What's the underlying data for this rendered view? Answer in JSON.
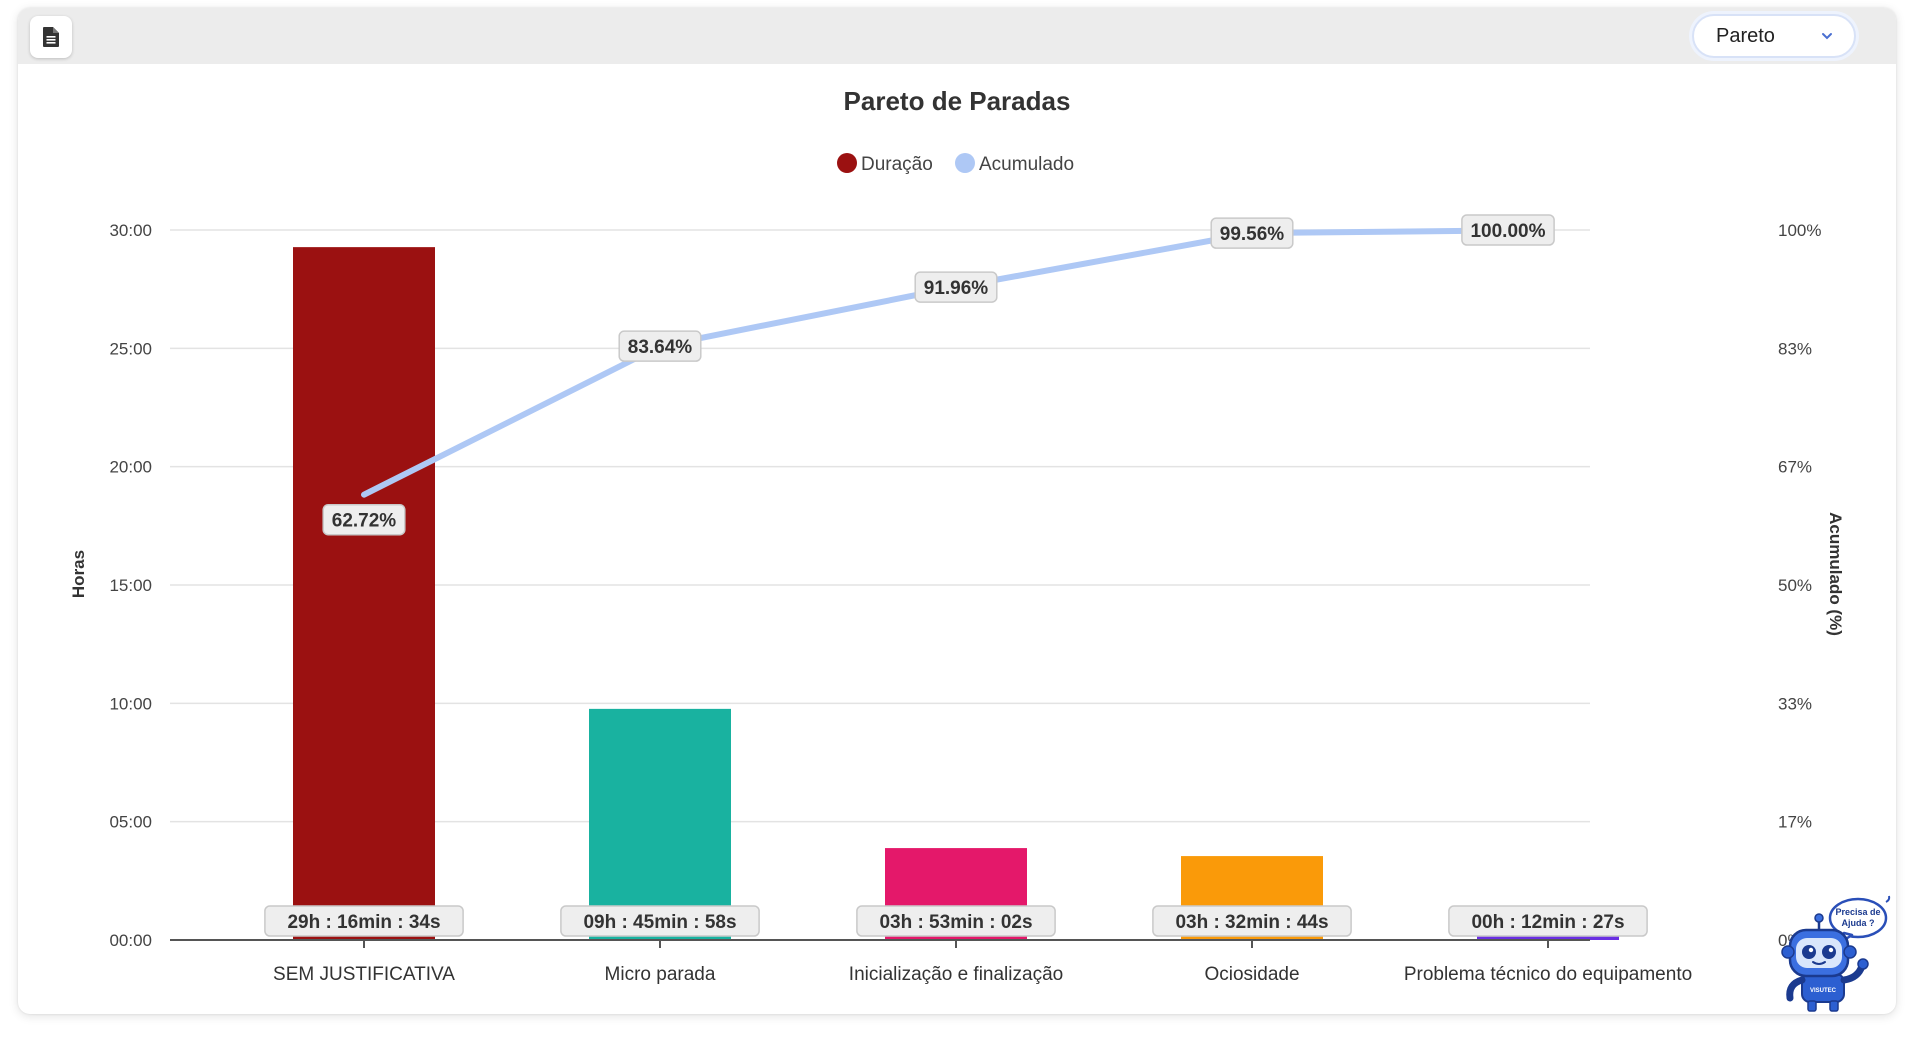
{
  "toolbar": {
    "doc_icon": "document-icon",
    "select_value": "Pareto",
    "select_icon": "chevron-down-icon"
  },
  "help": {
    "bubble_line1": "Precisa de",
    "bubble_line2": "Ajuda ?",
    "logo": "VISUTEC",
    "icon": "robot-mascot-icon"
  },
  "chart_data": {
    "type": "bar",
    "title": "Pareto de Paradas",
    "legend": [
      {
        "name": "Duração",
        "color": "#9b1111"
      },
      {
        "name": "Acumulado",
        "color": "#aec8f5"
      }
    ],
    "legend_position": "top-center",
    "grid": true,
    "ylabel": "Horas",
    "y2label": "Acumulado (%)",
    "yticks": [
      "00:00",
      "05:00",
      "10:00",
      "15:00",
      "20:00",
      "25:00",
      "30:00"
    ],
    "y2ticks": [
      "0%",
      "17%",
      "33%",
      "50%",
      "67%",
      "83%",
      "100%"
    ],
    "ylim": [
      0,
      30
    ],
    "y2lim": [
      0,
      100
    ],
    "categories": [
      "SEM JUSTIFICATIVA",
      "Micro parada",
      "Inicialização e finalização",
      "Ociosidade",
      "Problema técnico do equipamento"
    ],
    "series": [
      {
        "name": "Duração",
        "type": "bar",
        "values": [
          29.276,
          9.766,
          3.884,
          3.546,
          0.208
        ],
        "labels": [
          "29h : 16min : 34s",
          "09h : 45min : 58s",
          "03h : 53min : 02s",
          "03h : 32min : 44s",
          "00h : 12min : 27s"
        ],
        "colors": [
          "#9b1111",
          "#19b2a0",
          "#e4186a",
          "#fa9a09",
          "#6a2fe3"
        ]
      },
      {
        "name": "Acumulado",
        "type": "line",
        "axis": "right",
        "values": [
          62.72,
          83.64,
          91.96,
          99.56,
          100.0
        ],
        "labels": [
          "62.72%",
          "83.64%",
          "91.96%",
          "99.56%",
          "100.00%"
        ],
        "color": "#aec8f5"
      }
    ]
  }
}
